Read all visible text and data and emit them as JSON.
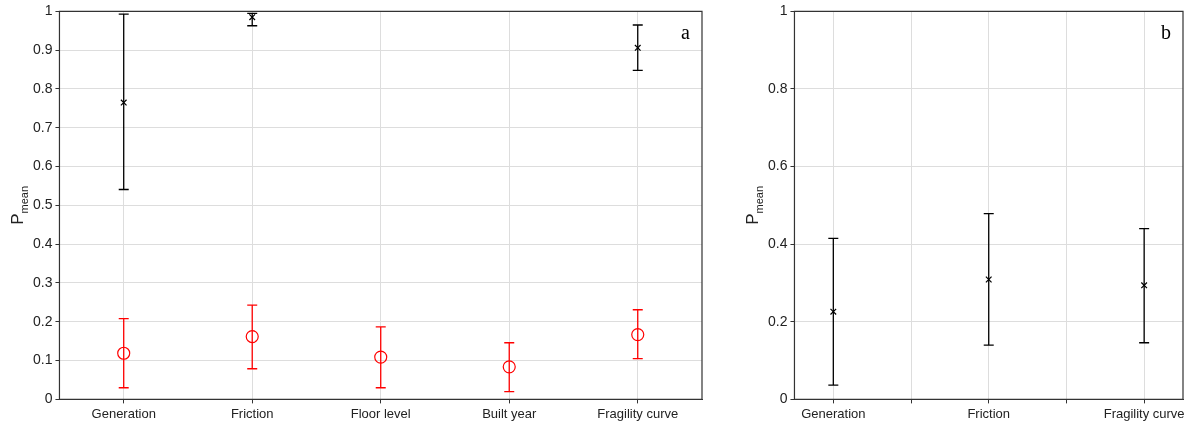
{
  "chart_data": [
    {
      "type": "scatter",
      "ylabel": "P$_{mean}$",
      "annotations": [
        "a"
      ],
      "categories": [
        "Generation",
        "Friction",
        "Floor level",
        "Built year",
        "Fragility curve"
      ],
      "ylim": [
        0,
        1
      ],
      "yticks": [
        0,
        0.1,
        0.2,
        0.3,
        0.4,
        0.5,
        0.6,
        0.7,
        0.8,
        0.9,
        1
      ],
      "grid": true,
      "legend": false,
      "series": [
        {
          "color": "#000000",
          "marker": "cross",
          "values": [
            0.765,
            0.985,
            null,
            null,
            0.906
          ],
          "errors": [
            [
              0.541,
              0.993
            ],
            [
              0.963,
              0.995
            ],
            null,
            null,
            [
              0.848,
              0.965
            ]
          ]
        },
        {
          "color": "#ff0000",
          "marker": "circle",
          "values": [
            0.119,
            0.162,
            0.109,
            0.084,
            0.167
          ],
          "errors": [
            [
              0.03,
              0.208
            ],
            [
              0.079,
              0.243
            ],
            [
              0.03,
              0.187
            ],
            [
              0.02,
              0.146
            ],
            [
              0.105,
              0.231
            ]
          ]
        }
      ]
    },
    {
      "type": "scatter",
      "ylabel": "P$_{mean}$",
      "annotations": [
        "b"
      ],
      "categories": [
        "Generation",
        null,
        "Friction",
        null,
        "Fragility curve"
      ],
      "ylim": [
        0,
        1
      ],
      "yticks": [
        0,
        0.2,
        0.4,
        0.6,
        0.8,
        1
      ],
      "grid": true,
      "legend": false,
      "series": [
        {
          "color": "#000000",
          "marker": "cross",
          "values": [
            0.226,
            null,
            0.309,
            null,
            0.294
          ],
          "errors": [
            [
              0.037,
              0.415
            ],
            null,
            [
              0.14,
              0.479
            ],
            null,
            [
              0.146,
              0.44
            ]
          ]
        }
      ]
    }
  ]
}
